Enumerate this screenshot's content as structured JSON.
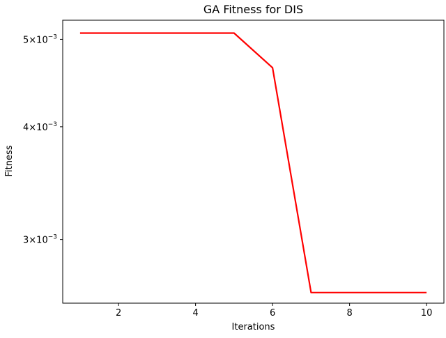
{
  "chart_data": {
    "type": "line",
    "title": "GA Fitness for DIS",
    "xlabel": "Iterations",
    "ylabel": "Fitness",
    "yscale": "log",
    "xlim": [
      0.55,
      10.45
    ],
    "ylim": [
      0.00255,
      0.00525
    ],
    "x_ticks": [
      2,
      4,
      6,
      8,
      10
    ],
    "y_ticks": [
      {
        "value": 0.005,
        "mantissa": "5",
        "exponent": "−3"
      },
      {
        "value": 0.004,
        "mantissa": "4",
        "exponent": "−3"
      },
      {
        "value": 0.003,
        "mantissa": "3",
        "exponent": "−3"
      }
    ],
    "grid": false,
    "series": [
      {
        "color": "#ff0000",
        "x": [
          1,
          2,
          3,
          4,
          5,
          6,
          7,
          8,
          9,
          10
        ],
        "y": [
          0.00508,
          0.00508,
          0.00508,
          0.00508,
          0.00508,
          0.00465,
          0.00262,
          0.00262,
          0.00262,
          0.00262
        ]
      }
    ]
  }
}
